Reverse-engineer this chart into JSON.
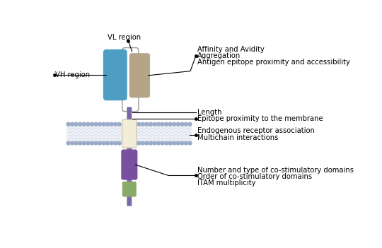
{
  "bg_color": "#ffffff",
  "colors": {
    "blue_domain": "#4d9ec2",
    "tan_domain": "#b5a485",
    "stem": "#7b68aa",
    "transmembrane": "#f2edd8",
    "transmembrane_border": "#c8c0a8",
    "costim": "#7b4fa0",
    "itam": "#8aaa6a",
    "membrane_dots": "#9aaac8",
    "membrane_fill": "#dde2ee",
    "linker_border": "#999999"
  },
  "labels": {
    "vl_region": "VL region",
    "vh_region": "VH region",
    "affinity": "Affinity and Avidity",
    "aggregation": "Aggregation",
    "antigen": "Antigen epitope proximity and accessibility",
    "length": "Length",
    "epitope_membrane": "Epitope proximity to the membrane",
    "endogenous": "Endogenous receptor association",
    "multichain": "Multichain interactions",
    "number_type": "Number and type of co-stimulatory domains",
    "order": "Order of co-stimulatory domains",
    "itam_label": "ITAM multiplicity"
  }
}
